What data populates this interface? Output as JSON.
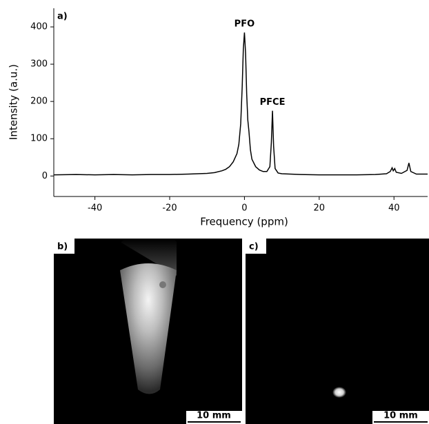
{
  "chart_data": {
    "type": "line",
    "xlabel": "Frequency (ppm)",
    "ylabel": "Intensity (a.u.)",
    "panel_label": "a)",
    "x": [
      -51,
      -45,
      -40,
      -35,
      -30,
      -25,
      -20,
      -15,
      -10,
      -8,
      -6,
      -5,
      -4,
      -3,
      -2,
      -1.5,
      -1,
      -0.6,
      -0.3,
      0,
      0.3,
      0.6,
      0.9,
      1.2,
      1.6,
      2,
      3,
      4,
      5,
      6,
      6.8,
      7.2,
      7.5,
      7.8,
      8.2,
      9,
      10,
      15,
      20,
      25,
      30,
      35,
      38,
      39,
      39.5,
      39.8,
      40.2,
      40.6,
      42,
      43.5,
      44,
      44.5,
      46,
      49
    ],
    "values": [
      3,
      4,
      3,
      4,
      3,
      4,
      4,
      5,
      7,
      9,
      14,
      18,
      25,
      38,
      60,
      85,
      140,
      240,
      340,
      385,
      330,
      220,
      150,
      120,
      70,
      45,
      25,
      16,
      12,
      12,
      25,
      90,
      175,
      80,
      20,
      8,
      6,
      4,
      3,
      3,
      3,
      4,
      6,
      12,
      22,
      14,
      20,
      10,
      7,
      15,
      35,
      12,
      5,
      5
    ],
    "color": "#000000",
    "xlim": [
      -51,
      49
    ],
    "ylim": [
      -55,
      450
    ],
    "xticks": [
      -40,
      -20,
      0,
      20,
      40
    ],
    "yticks": [
      0,
      100,
      200,
      300,
      400
    ],
    "annotations": [
      {
        "text": "PFO",
        "x": 0,
        "y": 385
      },
      {
        "text": "PFCE",
        "x": 7.5,
        "y": 175
      }
    ]
  },
  "images": [
    {
      "label": "b)",
      "scale_bar": "10 mm"
    },
    {
      "label": "c)",
      "scale_bar": "10 mm"
    }
  ]
}
